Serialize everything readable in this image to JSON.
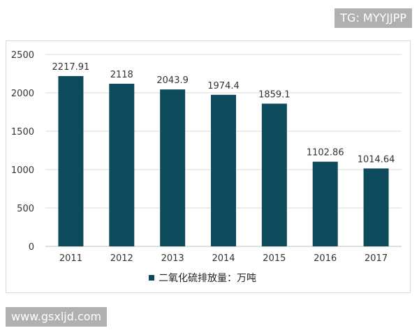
{
  "watermarks": {
    "top": "TG: MYYJJPP",
    "bottom": "www.gsxljd.com"
  },
  "chart_data": {
    "type": "bar",
    "categories": [
      "2011",
      "2012",
      "2013",
      "2014",
      "2015",
      "2016",
      "2017"
    ],
    "series": [
      {
        "name": "二氧化硫排放量：万吨",
        "values": [
          2217.91,
          2118,
          2043.9,
          1974.4,
          1859.1,
          1102.86,
          1014.64
        ],
        "labels": [
          "2217.91",
          "2118",
          "2043.9",
          "1974.4",
          "1859.1",
          "1102.86",
          "1014.64"
        ]
      }
    ],
    "yticks": [
      "0",
      "500",
      "1000",
      "1500",
      "2000",
      "2500"
    ],
    "ylim": [
      0,
      2500
    ],
    "grid": true,
    "legend": "bottom",
    "color": "#0d4a5c"
  }
}
